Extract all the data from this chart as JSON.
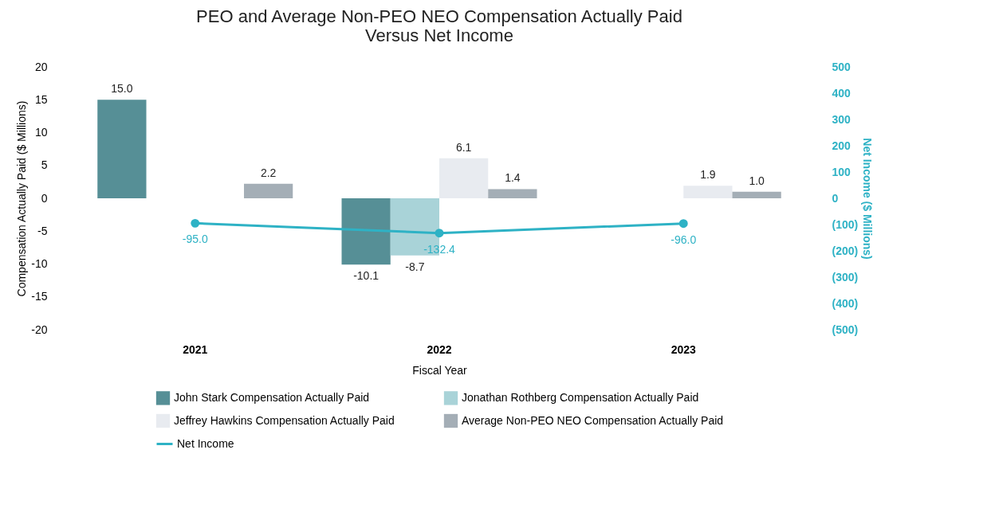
{
  "chart_data": {
    "type": "bar",
    "title": "PEO and Average Non-PEO NEO Compensation Actually Paid Versus Net Income",
    "xlabel": "Fiscal Year",
    "ylabel": "Compensation Actually  Paid  ($ Millions)",
    "y2label": "Net Income ($ Millions)",
    "categories": [
      "2021",
      "2022",
      "2023"
    ],
    "series": [
      {
        "name": "John Stark Compensation Actually Paid",
        "color": "#568f96",
        "values": [
          15.0,
          -10.1,
          null
        ],
        "value_labels": [
          "15.0",
          "-10.1",
          null
        ]
      },
      {
        "name": "Jonathan Rothberg Compensation Actually Paid",
        "color": "#a9d3d8",
        "values": [
          null,
          -8.7,
          null
        ],
        "value_labels": [
          null,
          "-8.7",
          null
        ]
      },
      {
        "name": "Jeffrey Hawkins Compensation Actually Paid",
        "color": "#e8ebf0",
        "values": [
          null,
          6.1,
          1.9
        ],
        "value_labels": [
          null,
          "6.1",
          "1.9"
        ]
      },
      {
        "name": "Average Non-PEO NEO Compensation Actually Paid",
        "color": "#a4aeb6",
        "values": [
          2.2,
          1.4,
          1.0
        ],
        "value_labels": [
          "2.2",
          "1.4",
          "1.0"
        ]
      },
      {
        "name": "Net Income",
        "type": "line",
        "axis": "y2",
        "color": "#2eb2c5",
        "marker": "circle",
        "values": [
          -95.0,
          -132.4,
          -96.0
        ],
        "value_labels": [
          "-95.0",
          "-132.4",
          "-96.0"
        ]
      }
    ],
    "ylim": [
      -20,
      20
    ],
    "yticks": [
      -20,
      -15,
      -10,
      -5,
      0,
      5,
      10,
      15,
      20
    ],
    "y2lim": [
      -500,
      500
    ],
    "y2ticks": [
      {
        "value": -500,
        "label": "(500)"
      },
      {
        "value": -400,
        "label": "(400)"
      },
      {
        "value": -300,
        "label": "(300)"
      },
      {
        "value": -200,
        "label": "(200)"
      },
      {
        "value": -100,
        "label": "(100)"
      },
      0,
      100,
      200,
      300,
      400,
      500
    ],
    "legend": "bottom"
  }
}
